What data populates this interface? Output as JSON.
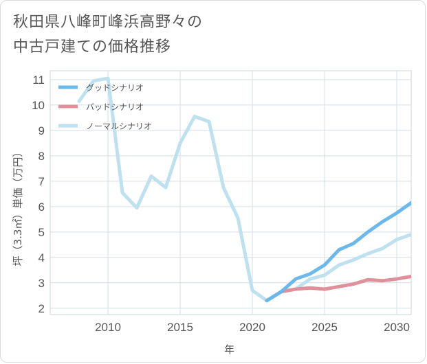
{
  "title": {
    "line1": "秋田県八峰町峰浜高野々の",
    "line2": "中古戸建ての価格推移"
  },
  "chart_data": {
    "type": "line",
    "xlabel": "年",
    "ylabel": "坪（3.3㎡）単価（万円）",
    "xlim": [
      2006,
      2031
    ],
    "ylim": [
      1.75,
      11.35
    ],
    "xticks": [
      2010,
      2015,
      2020,
      2025,
      2030
    ],
    "yticks": [
      2,
      3,
      4,
      5,
      6,
      7,
      8,
      9,
      10,
      11
    ],
    "grid": true,
    "legend_position": "top-left",
    "series": [
      {
        "name": "グッドシナリオ",
        "color": "#6cb8ea",
        "x": [
          2021,
          2022,
          2023,
          2024,
          2025,
          2026,
          2027,
          2028,
          2029,
          2030,
          2031
        ],
        "y": [
          2.3,
          2.65,
          3.15,
          3.35,
          3.7,
          4.3,
          4.55,
          5.0,
          5.4,
          5.75,
          6.15
        ]
      },
      {
        "name": "バッドシナリオ",
        "color": "#e0909a",
        "x": [
          2021,
          2022,
          2023,
          2024,
          2025,
          2026,
          2027,
          2028,
          2029,
          2030,
          2031
        ],
        "y": [
          2.3,
          2.65,
          2.75,
          2.8,
          2.75,
          2.85,
          2.95,
          3.12,
          3.08,
          3.15,
          3.25
        ]
      },
      {
        "name": "ノーマルシナリオ",
        "color": "#bfe0ee",
        "x": [
          2008,
          2009,
          2010,
          2011,
          2012,
          2013,
          2014,
          2015,
          2016,
          2017,
          2018,
          2019,
          2020,
          2021,
          2022,
          2023,
          2024,
          2025,
          2026,
          2027,
          2028,
          2029,
          2030,
          2031
        ],
        "y": [
          10.15,
          10.95,
          11.05,
          6.55,
          5.95,
          7.2,
          6.75,
          8.5,
          9.55,
          9.35,
          6.75,
          5.55,
          2.7,
          2.3,
          2.65,
          2.75,
          3.15,
          3.3,
          3.7,
          3.9,
          4.15,
          4.35,
          4.7,
          4.9
        ]
      }
    ]
  }
}
